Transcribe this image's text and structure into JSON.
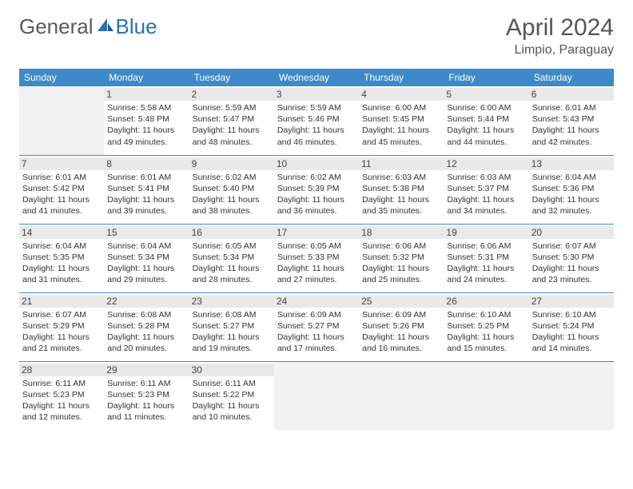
{
  "logo": {
    "general": "General",
    "blue": "Blue"
  },
  "title": "April 2024",
  "location": "Limpio, Paraguay",
  "colors": {
    "header_bg": "#3e8ac9",
    "header_text": "#ffffff",
    "empty_bg": "#f2f2f2",
    "daynum_bg": "#e9e9e9",
    "border": "#3e8ac9",
    "text": "#333333",
    "logo_gray": "#5a5a5a",
    "logo_blue": "#2c6fb5"
  },
  "day_headers": [
    "Sunday",
    "Monday",
    "Tuesday",
    "Wednesday",
    "Thursday",
    "Friday",
    "Saturday"
  ],
  "weeks": [
    [
      {
        "empty": true
      },
      {
        "n": "1",
        "sr": "Sunrise: 5:58 AM",
        "ss": "Sunset: 5:48 PM",
        "dl": "Daylight: 11 hours and 49 minutes."
      },
      {
        "n": "2",
        "sr": "Sunrise: 5:59 AM",
        "ss": "Sunset: 5:47 PM",
        "dl": "Daylight: 11 hours and 48 minutes."
      },
      {
        "n": "3",
        "sr": "Sunrise: 5:59 AM",
        "ss": "Sunset: 5:46 PM",
        "dl": "Daylight: 11 hours and 46 minutes."
      },
      {
        "n": "4",
        "sr": "Sunrise: 6:00 AM",
        "ss": "Sunset: 5:45 PM",
        "dl": "Daylight: 11 hours and 45 minutes."
      },
      {
        "n": "5",
        "sr": "Sunrise: 6:00 AM",
        "ss": "Sunset: 5:44 PM",
        "dl": "Daylight: 11 hours and 44 minutes."
      },
      {
        "n": "6",
        "sr": "Sunrise: 6:01 AM",
        "ss": "Sunset: 5:43 PM",
        "dl": "Daylight: 11 hours and 42 minutes."
      }
    ],
    [
      {
        "n": "7",
        "sr": "Sunrise: 6:01 AM",
        "ss": "Sunset: 5:42 PM",
        "dl": "Daylight: 11 hours and 41 minutes."
      },
      {
        "n": "8",
        "sr": "Sunrise: 6:01 AM",
        "ss": "Sunset: 5:41 PM",
        "dl": "Daylight: 11 hours and 39 minutes."
      },
      {
        "n": "9",
        "sr": "Sunrise: 6:02 AM",
        "ss": "Sunset: 5:40 PM",
        "dl": "Daylight: 11 hours and 38 minutes."
      },
      {
        "n": "10",
        "sr": "Sunrise: 6:02 AM",
        "ss": "Sunset: 5:39 PM",
        "dl": "Daylight: 11 hours and 36 minutes."
      },
      {
        "n": "11",
        "sr": "Sunrise: 6:03 AM",
        "ss": "Sunset: 5:38 PM",
        "dl": "Daylight: 11 hours and 35 minutes."
      },
      {
        "n": "12",
        "sr": "Sunrise: 6:03 AM",
        "ss": "Sunset: 5:37 PM",
        "dl": "Daylight: 11 hours and 34 minutes."
      },
      {
        "n": "13",
        "sr": "Sunrise: 6:04 AM",
        "ss": "Sunset: 5:36 PM",
        "dl": "Daylight: 11 hours and 32 minutes."
      }
    ],
    [
      {
        "n": "14",
        "sr": "Sunrise: 6:04 AM",
        "ss": "Sunset: 5:35 PM",
        "dl": "Daylight: 11 hours and 31 minutes."
      },
      {
        "n": "15",
        "sr": "Sunrise: 6:04 AM",
        "ss": "Sunset: 5:34 PM",
        "dl": "Daylight: 11 hours and 29 minutes."
      },
      {
        "n": "16",
        "sr": "Sunrise: 6:05 AM",
        "ss": "Sunset: 5:34 PM",
        "dl": "Daylight: 11 hours and 28 minutes."
      },
      {
        "n": "17",
        "sr": "Sunrise: 6:05 AM",
        "ss": "Sunset: 5:33 PM",
        "dl": "Daylight: 11 hours and 27 minutes."
      },
      {
        "n": "18",
        "sr": "Sunrise: 6:06 AM",
        "ss": "Sunset: 5:32 PM",
        "dl": "Daylight: 11 hours and 25 minutes."
      },
      {
        "n": "19",
        "sr": "Sunrise: 6:06 AM",
        "ss": "Sunset: 5:31 PM",
        "dl": "Daylight: 11 hours and 24 minutes."
      },
      {
        "n": "20",
        "sr": "Sunrise: 6:07 AM",
        "ss": "Sunset: 5:30 PM",
        "dl": "Daylight: 11 hours and 23 minutes."
      }
    ],
    [
      {
        "n": "21",
        "sr": "Sunrise: 6:07 AM",
        "ss": "Sunset: 5:29 PM",
        "dl": "Daylight: 11 hours and 21 minutes."
      },
      {
        "n": "22",
        "sr": "Sunrise: 6:08 AM",
        "ss": "Sunset: 5:28 PM",
        "dl": "Daylight: 11 hours and 20 minutes."
      },
      {
        "n": "23",
        "sr": "Sunrise: 6:08 AM",
        "ss": "Sunset: 5:27 PM",
        "dl": "Daylight: 11 hours and 19 minutes."
      },
      {
        "n": "24",
        "sr": "Sunrise: 6:09 AM",
        "ss": "Sunset: 5:27 PM",
        "dl": "Daylight: 11 hours and 17 minutes."
      },
      {
        "n": "25",
        "sr": "Sunrise: 6:09 AM",
        "ss": "Sunset: 5:26 PM",
        "dl": "Daylight: 11 hours and 16 minutes."
      },
      {
        "n": "26",
        "sr": "Sunrise: 6:10 AM",
        "ss": "Sunset: 5:25 PM",
        "dl": "Daylight: 11 hours and 15 minutes."
      },
      {
        "n": "27",
        "sr": "Sunrise: 6:10 AM",
        "ss": "Sunset: 5:24 PM",
        "dl": "Daylight: 11 hours and 14 minutes."
      }
    ],
    [
      {
        "n": "28",
        "sr": "Sunrise: 6:11 AM",
        "ss": "Sunset: 5:23 PM",
        "dl": "Daylight: 11 hours and 12 minutes."
      },
      {
        "n": "29",
        "sr": "Sunrise: 6:11 AM",
        "ss": "Sunset: 5:23 PM",
        "dl": "Daylight: 11 hours and 11 minutes."
      },
      {
        "n": "30",
        "sr": "Sunrise: 6:11 AM",
        "ss": "Sunset: 5:22 PM",
        "dl": "Daylight: 11 hours and 10 minutes."
      },
      {
        "empty": true
      },
      {
        "empty": true
      },
      {
        "empty": true
      },
      {
        "empty": true
      }
    ]
  ]
}
